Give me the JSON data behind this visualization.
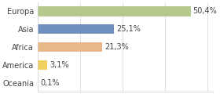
{
  "categories": [
    "Europa",
    "Asia",
    "Africa",
    "America",
    "Oceania"
  ],
  "values": [
    50.4,
    25.1,
    21.3,
    3.1,
    0.1
  ],
  "labels": [
    "50,4%",
    "25,1%",
    "21,3%",
    "3,1%",
    "0,1%"
  ],
  "bar_colors": [
    "#b5c98e",
    "#6f8fbf",
    "#e8b88a",
    "#f0d060",
    "#d0d0d0"
  ],
  "background_color": "#ffffff",
  "plot_bg_color": "#ffffff",
  "xlim": [
    0,
    58
  ],
  "label_fontsize": 7,
  "tick_fontsize": 7,
  "bar_height": 0.55
}
